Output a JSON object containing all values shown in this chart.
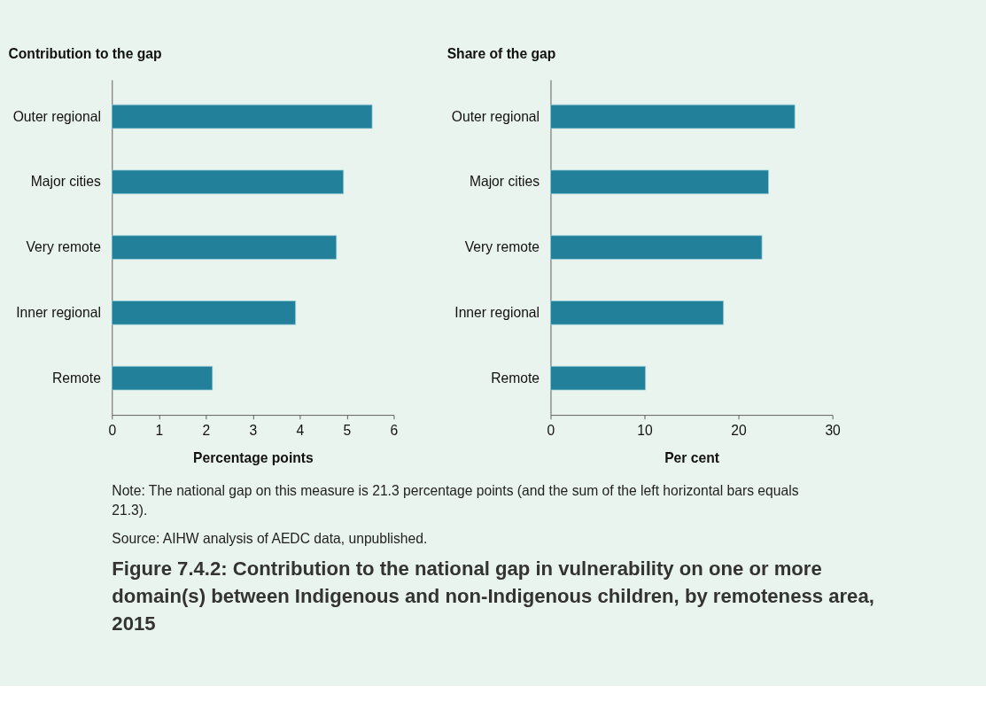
{
  "chart_data": [
    {
      "type": "bar",
      "orientation": "horizontal",
      "title": "Contribution to the gap",
      "xlabel": "Percentage points",
      "categories": [
        "Outer regional",
        "Major cities",
        "Very remote",
        "Inner regional",
        "Remote"
      ],
      "values": [
        5.54,
        4.93,
        4.78,
        3.91,
        2.14
      ],
      "color": "#23809a",
      "xlim": [
        0,
        6
      ],
      "xticks": [
        0,
        1,
        2,
        3,
        4,
        5,
        6
      ],
      "grid": false
    },
    {
      "type": "bar",
      "orientation": "horizontal",
      "title": "Share of the gap",
      "xlabel": "Per cent",
      "categories": [
        "Outer regional",
        "Major cities",
        "Very remote",
        "Inner regional",
        "Remote"
      ],
      "values": [
        26.0,
        23.2,
        22.5,
        18.4,
        10.1
      ],
      "color": "#23809a",
      "xlim": [
        0,
        30
      ],
      "xticks": [
        0,
        10,
        20,
        30
      ],
      "grid": false,
      "annotations": [
        "Note: The national gap on this measure is 21.3 percentage points (and the sum of the left horizontal bars equals 21.3).",
        "Source: AIHW analysis of AEDC data, unpublished.",
        "Figure 7.4.2: Contribution to the national gap in vulnerability on one or more domain(s) between Indigenous and non-Indigenous children, by remoteness area, 2015"
      ]
    }
  ]
}
